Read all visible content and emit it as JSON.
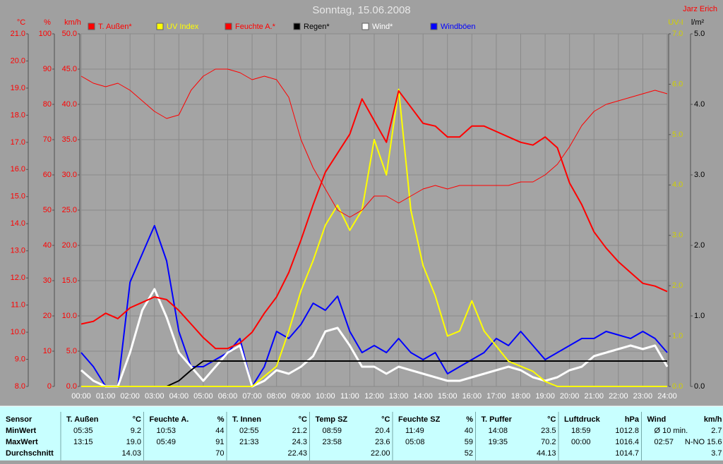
{
  "chart_data": {
    "type": "line",
    "title": "Sonntag, 15.06.2008",
    "author": "Jarz Erich",
    "xlim": [
      0,
      24
    ],
    "xticks": [
      {
        "value": 0,
        "label": "00:00"
      },
      {
        "value": 1,
        "label": "01:00"
      },
      {
        "value": 2,
        "label": "02:00"
      },
      {
        "value": 3,
        "label": "03:00"
      },
      {
        "value": 4,
        "label": "04:00"
      },
      {
        "value": 5,
        "label": "05:00"
      },
      {
        "value": 6,
        "label": "06:00"
      },
      {
        "value": 7,
        "label": "07:00"
      },
      {
        "value": 8,
        "label": "08:00"
      },
      {
        "value": 9,
        "label": "09:00"
      },
      {
        "value": 10,
        "label": "10:00"
      },
      {
        "value": 11,
        "label": "11:00"
      },
      {
        "value": 12,
        "label": "12:00"
      },
      {
        "value": 13,
        "label": "13:00"
      },
      {
        "value": 14,
        "label": "14:00"
      },
      {
        "value": 15,
        "label": "15:00"
      },
      {
        "value": 16,
        "label": "16:00"
      },
      {
        "value": 17,
        "label": "17:00"
      },
      {
        "value": 18,
        "label": "18:00"
      },
      {
        "value": 19,
        "label": "19:00"
      },
      {
        "value": 20,
        "label": "20:00"
      },
      {
        "value": 21,
        "label": "21:00"
      },
      {
        "value": 22,
        "label": "22:00"
      },
      {
        "value": 23,
        "label": "23:00"
      },
      {
        "value": 24,
        "label": "24:00"
      }
    ],
    "grid": true,
    "axes": [
      {
        "label": "°C",
        "side": "left",
        "color": "#ff0000",
        "lim": [
          8,
          21
        ],
        "ticks": [
          {
            "value": 8,
            "label": "8.0"
          },
          {
            "value": 9,
            "label": "9.0"
          },
          {
            "value": 10,
            "label": "10.0"
          },
          {
            "value": 11,
            "label": "11.0"
          },
          {
            "value": 12,
            "label": "12.0"
          },
          {
            "value": 13,
            "label": "13.0"
          },
          {
            "value": 14,
            "label": "14.0"
          },
          {
            "value": 15,
            "label": "15.0"
          },
          {
            "value": 16,
            "label": "16.0"
          },
          {
            "value": 17,
            "label": "17.0"
          },
          {
            "value": 18,
            "label": "18.0"
          },
          {
            "value": 19,
            "label": "19.0"
          },
          {
            "value": 20,
            "label": "20.0"
          },
          {
            "value": 21,
            "label": "21.0"
          }
        ]
      },
      {
        "label": "%",
        "side": "left",
        "color": "#ff0000",
        "lim": [
          0,
          100
        ],
        "ticks": [
          0,
          10,
          20,
          30,
          40,
          50,
          60,
          70,
          80,
          90,
          100
        ]
      },
      {
        "label": "km/h",
        "side": "left",
        "color": "#ff0000",
        "lim": [
          0,
          50
        ],
        "ticks": [
          {
            "value": 0,
            "label": "0.0"
          },
          {
            "value": 5,
            "label": "5.0"
          },
          {
            "value": 10,
            "label": "10.0"
          },
          {
            "value": 15,
            "label": "15.0"
          },
          {
            "value": 20,
            "label": "20.0"
          },
          {
            "value": 25,
            "label": "25.0"
          },
          {
            "value": 30,
            "label": "30.0"
          },
          {
            "value": 35,
            "label": "35.0"
          },
          {
            "value": 40,
            "label": "40.0"
          },
          {
            "value": 45,
            "label": "45.0"
          },
          {
            "value": 50,
            "label": "50.0"
          }
        ],
        "grid": true
      },
      {
        "label": "UV-I",
        "side": "right",
        "color": "#d0d000",
        "lim": [
          0,
          7
        ],
        "ticks": [
          {
            "value": 0,
            "label": "0.0"
          },
          {
            "value": 1,
            "label": "1.0"
          },
          {
            "value": 2,
            "label": "2.0"
          },
          {
            "value": 3,
            "label": "3.0"
          },
          {
            "value": 4,
            "label": "4.0"
          },
          {
            "value": 5,
            "label": "5.0"
          },
          {
            "value": 6,
            "label": "6.0"
          },
          {
            "value": 7,
            "label": "7.0"
          }
        ]
      },
      {
        "label": "l/m²",
        "side": "right",
        "color": "#000000",
        "lim": [
          0,
          5
        ],
        "ticks": [
          {
            "value": 0,
            "label": "0.0"
          },
          {
            "value": 1,
            "label": "1.0"
          },
          {
            "value": 2,
            "label": "2.0"
          },
          {
            "value": 3,
            "label": "3.0"
          },
          {
            "value": 4,
            "label": "4.0"
          },
          {
            "value": 5,
            "label": "5.0"
          }
        ]
      }
    ],
    "x": [
      0,
      0.5,
      1,
      1.5,
      2,
      2.5,
      3,
      3.5,
      4,
      4.5,
      5,
      5.5,
      6,
      6.5,
      7,
      7.5,
      8,
      8.5,
      9,
      9.5,
      10,
      10.5,
      11,
      11.5,
      12,
      12.5,
      13,
      13.5,
      14,
      14.5,
      15,
      15.5,
      16,
      16.5,
      17,
      17.5,
      18,
      18.5,
      19,
      19.5,
      20,
      20.5,
      21,
      21.5,
      22,
      22.5,
      23,
      23.5,
      24
    ],
    "series": [
      {
        "name": "T. Außen*",
        "color": "#ff0000",
        "line_width": 2,
        "axis": "°C",
        "values": [
          10.3,
          10.4,
          10.7,
          10.5,
          10.9,
          11.1,
          11.3,
          11.2,
          10.8,
          10.3,
          9.8,
          9.4,
          9.4,
          9.6,
          10.0,
          10.7,
          11.3,
          12.2,
          13.4,
          14.7,
          15.9,
          16.6,
          17.3,
          18.6,
          17.8,
          17.0,
          18.9,
          18.3,
          17.7,
          17.6,
          17.2,
          17.2,
          17.6,
          17.6,
          17.4,
          17.2,
          17.0,
          16.9,
          17.2,
          16.8,
          15.5,
          14.7,
          13.7,
          13.1,
          12.6,
          12.2,
          11.8,
          11.7,
          11.5
        ]
      },
      {
        "name": "UV Index",
        "color": "#ffff00",
        "line_width": 2,
        "axis": "UV-I",
        "values": [
          0,
          0,
          0,
          0,
          0,
          0,
          0,
          0,
          0,
          0,
          0,
          0,
          0,
          0,
          0,
          0.2,
          0.4,
          1.1,
          1.9,
          2.5,
          3.2,
          3.6,
          3.1,
          3.5,
          4.9,
          4.2,
          5.9,
          3.5,
          2.4,
          1.8,
          1.0,
          1.1,
          1.7,
          1.1,
          0.8,
          0.5,
          0.4,
          0.3,
          0.1,
          0,
          0,
          0,
          0,
          0,
          0,
          0,
          0,
          0,
          0
        ]
      },
      {
        "name": "Feuchte A.*",
        "color": "#ff0000",
        "line_width": 1,
        "axis": "%",
        "values": [
          88,
          86,
          85,
          86,
          84,
          81,
          78,
          76,
          77,
          84,
          88,
          90,
          90,
          89,
          87,
          88,
          87,
          82,
          70,
          62,
          56,
          50,
          48,
          50,
          54,
          54,
          52,
          54,
          56,
          57,
          56,
          57,
          57,
          57,
          57,
          57,
          58,
          58,
          60,
          63,
          68,
          74,
          78,
          80,
          81,
          82,
          83,
          84,
          83
        ]
      },
      {
        "name": "Regen*",
        "color": "#000000",
        "line_width": 2,
        "axis": "l/m²",
        "values": [
          0,
          0,
          0,
          0,
          0,
          0,
          0,
          0,
          0.08,
          0.23,
          0.36,
          0.36,
          0.36,
          0.36,
          0.36,
          0.36,
          0.36,
          0.36,
          0.36,
          0.36,
          0.36,
          0.36,
          0.36,
          0.36,
          0.36,
          0.36,
          0.36,
          0.36,
          0.36,
          0.36,
          0.36,
          0.36,
          0.36,
          0.36,
          0.36,
          0.36,
          0.36,
          0.36,
          0.36,
          0.36,
          0.36,
          0.36,
          0.36,
          0.36,
          0.36,
          0.36,
          0.36,
          0.36,
          0.36
        ]
      },
      {
        "name": "Wind*",
        "color": "#ffffff",
        "line_width": 3,
        "axis": "km/h",
        "values": [
          2.3,
          0.8,
          0,
          0,
          4.8,
          10.8,
          13.8,
          9.8,
          4.8,
          2.8,
          0.8,
          2.8,
          4.8,
          5.8,
          0,
          0.8,
          2.3,
          1.8,
          2.8,
          4.3,
          7.8,
          8.3,
          5.8,
          2.8,
          2.8,
          1.8,
          2.8,
          2.3,
          1.8,
          1.3,
          0.8,
          0.8,
          1.3,
          1.8,
          2.3,
          2.8,
          2.3,
          1.3,
          0.8,
          1.3,
          2.3,
          2.8,
          4.3,
          4.8,
          5.3,
          5.8,
          5.3,
          5.8,
          2.8
        ]
      },
      {
        "name": "Windböen",
        "color": "#0000ff",
        "line_width": 2,
        "axis": "km/h",
        "values": [
          4.8,
          2.8,
          0,
          0,
          14.8,
          18.8,
          22.8,
          17.8,
          7.8,
          2.8,
          2.8,
          3.8,
          4.8,
          6.8,
          0,
          2.8,
          7.8,
          6.8,
          8.8,
          11.8,
          10.8,
          12.8,
          7.8,
          4.8,
          5.8,
          4.8,
          6.8,
          4.8,
          3.8,
          4.8,
          1.8,
          2.8,
          3.8,
          4.8,
          6.8,
          5.8,
          7.8,
          5.8,
          3.8,
          4.8,
          5.8,
          6.8,
          6.8,
          7.8,
          7.3,
          6.8,
          7.8,
          6.8,
          4.8
        ]
      }
    ]
  },
  "table": {
    "row_labels": [
      "Sensor",
      "MinWert",
      "MaxWert",
      "Durchschnitt"
    ],
    "groups": [
      {
        "name": "T. Außen",
        "unit": "°C",
        "min": [
          "05:35",
          "9.2"
        ],
        "max": [
          "13:15",
          "19.0"
        ],
        "avg": "14.03"
      },
      {
        "name": "Feuchte A.",
        "unit": "%",
        "min": [
          "10:53",
          "44"
        ],
        "max": [
          "05:49",
          "91"
        ],
        "avg": "70"
      },
      {
        "name": "T. Innen",
        "unit": "°C",
        "min": [
          "02:55",
          "21.2"
        ],
        "max": [
          "21:33",
          "24.3"
        ],
        "avg": "22.43"
      },
      {
        "name": "Temp SZ",
        "unit": "°C",
        "min": [
          "08:59",
          "20.4"
        ],
        "max": [
          "23:58",
          "23.6"
        ],
        "avg": "22.00"
      },
      {
        "name": "Feuchte SZ",
        "unit": "%",
        "min": [
          "11:49",
          "40"
        ],
        "max": [
          "05:08",
          "59"
        ],
        "avg": "52"
      },
      {
        "name": "T. Puffer",
        "unit": "°C",
        "min": [
          "14:08",
          "23.5"
        ],
        "max": [
          "19:35",
          "70.2"
        ],
        "avg": "44.13"
      },
      {
        "name": "Luftdruck",
        "unit": "hPa",
        "min": [
          "18:59",
          "1012.8"
        ],
        "max": [
          "00:00",
          "1016.4"
        ],
        "avg": "1014.7"
      },
      {
        "name": "Wind",
        "unit": "km/h",
        "min": [
          "Ø 10 min.",
          "2.7"
        ],
        "max": [
          "02:57",
          "N-NO 15.6"
        ],
        "avg": "3.7"
      }
    ]
  }
}
